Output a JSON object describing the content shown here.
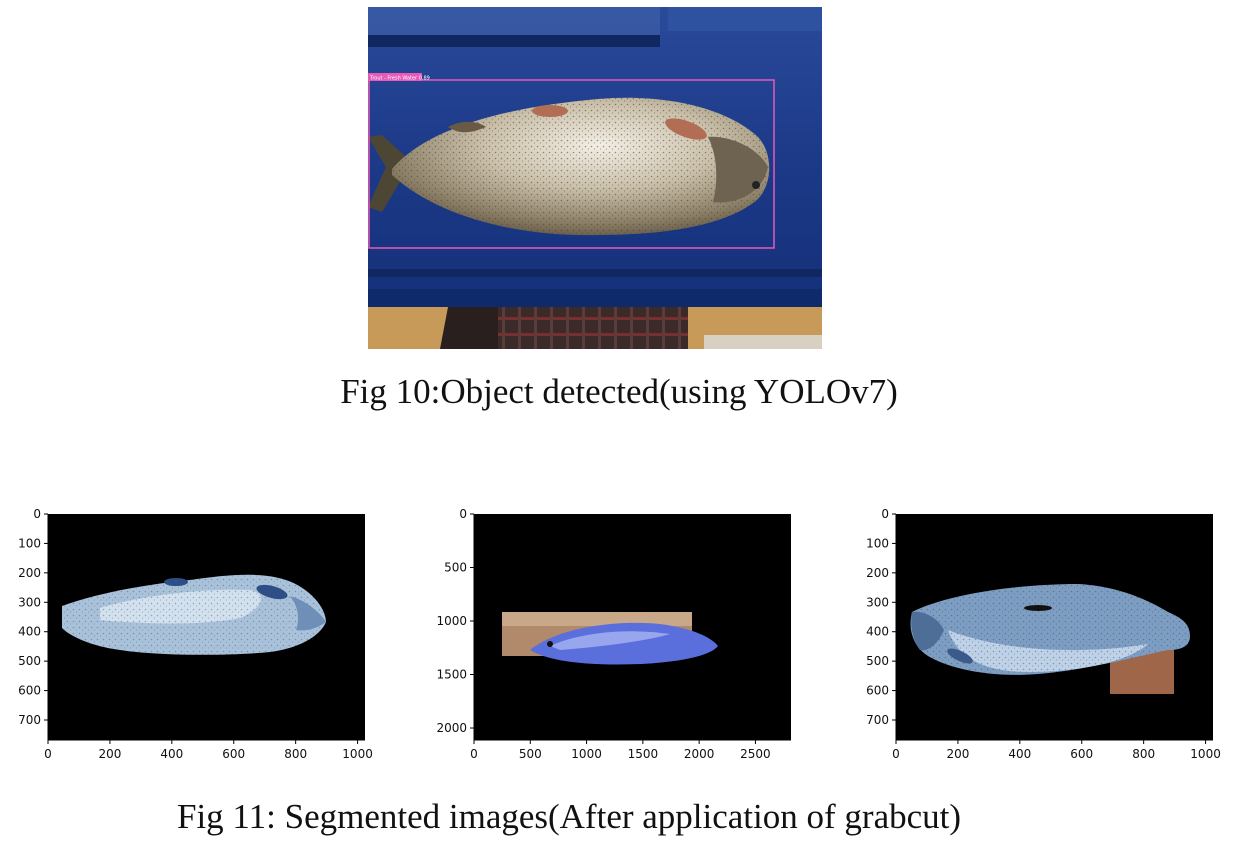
{
  "figure10": {
    "caption": "Fig 10:Object detected(using YOLOv7)",
    "detection_label": "Trout - Fresh Water 0.89"
  },
  "figure11": {
    "caption": "Fig 11: Segmented images(After application of grabcut)"
  },
  "plots": [
    {
      "xticks": [
        "0",
        "200",
        "400",
        "600",
        "800",
        "1000"
      ],
      "yticks": [
        "0",
        "100",
        "200",
        "300",
        "400",
        "500",
        "600",
        "700"
      ]
    },
    {
      "xticks": [
        "0",
        "500",
        "1000",
        "1500",
        "2000",
        "2500"
      ],
      "yticks": [
        "0",
        "500",
        "1000",
        "1500",
        "2000"
      ]
    },
    {
      "xticks": [
        "0",
        "200",
        "400",
        "600",
        "800",
        "1000"
      ],
      "yticks": [
        "0",
        "100",
        "200",
        "300",
        "400",
        "500",
        "600",
        "700"
      ]
    }
  ],
  "colors": {
    "tank_blue": "#1d3a8a",
    "plot_black": "#000000",
    "detection_box": "#e65ab8"
  }
}
